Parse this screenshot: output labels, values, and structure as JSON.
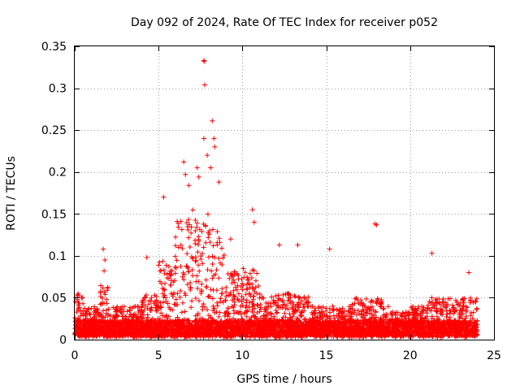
{
  "chart_data": {
    "type": "scatter",
    "title": "Day 092 of 2024, Rate Of TEC Index for receiver p052",
    "xlabel": "GPS time / hours",
    "ylabel": "ROTI / TECUs",
    "xlim": [
      0,
      25
    ],
    "ylim": [
      0,
      0.35
    ],
    "xticks": [
      0,
      5,
      10,
      15,
      20,
      25
    ],
    "xtick_labels": [
      "0",
      "5",
      "10",
      "15",
      "20",
      "25"
    ],
    "yticks": [
      0,
      0.05,
      0.1,
      0.15,
      0.2,
      0.25,
      0.3,
      0.35
    ],
    "ytick_labels": [
      "0",
      "0.05",
      "0.1",
      "0.15",
      "0.2",
      "0.25",
      "0.3",
      "0.35"
    ],
    "grid": true,
    "marker": "plus",
    "marker_color": "#ff0000",
    "x_range_hours": [
      0,
      24
    ],
    "baseline_level": 0.02,
    "notable_points": [
      {
        "x": 1.7,
        "y": 0.108
      },
      {
        "x": 1.8,
        "y": 0.095
      },
      {
        "x": 1.75,
        "y": 0.082
      },
      {
        "x": 4.3,
        "y": 0.098
      },
      {
        "x": 5.3,
        "y": 0.17
      },
      {
        "x": 6.5,
        "y": 0.212
      },
      {
        "x": 6.6,
        "y": 0.197
      },
      {
        "x": 6.8,
        "y": 0.184
      },
      {
        "x": 7.3,
        "y": 0.205
      },
      {
        "x": 7.4,
        "y": 0.194
      },
      {
        "x": 7.7,
        "y": 0.333
      },
      {
        "x": 7.72,
        "y": 0.332
      },
      {
        "x": 7.75,
        "y": 0.304
      },
      {
        "x": 7.7,
        "y": 0.24
      },
      {
        "x": 7.9,
        "y": 0.22
      },
      {
        "x": 8.2,
        "y": 0.261
      },
      {
        "x": 8.3,
        "y": 0.24
      },
      {
        "x": 8.35,
        "y": 0.23
      },
      {
        "x": 8.1,
        "y": 0.205
      },
      {
        "x": 8.6,
        "y": 0.188
      },
      {
        "x": 9.3,
        "y": 0.12
      },
      {
        "x": 10.6,
        "y": 0.155
      },
      {
        "x": 10.7,
        "y": 0.14
      },
      {
        "x": 12.2,
        "y": 0.113
      },
      {
        "x": 13.3,
        "y": 0.113
      },
      {
        "x": 15.2,
        "y": 0.108
      },
      {
        "x": 17.9,
        "y": 0.138
      },
      {
        "x": 18.0,
        "y": 0.137
      },
      {
        "x": 21.3,
        "y": 0.103
      },
      {
        "x": 23.5,
        "y": 0.08
      }
    ]
  }
}
